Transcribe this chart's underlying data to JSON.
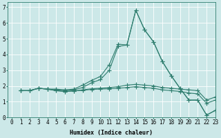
{
  "title": "",
  "xlabel": "Humidex (Indice chaleur)",
  "background_color": "#cce8e8",
  "grid_color": "#ffffff",
  "line_color": "#2e7d6e",
  "xlim": [
    -0.5,
    23
  ],
  "ylim": [
    0,
    7.3
  ],
  "xticks": [
    0,
    1,
    2,
    3,
    4,
    5,
    6,
    7,
    8,
    9,
    10,
    11,
    12,
    13,
    14,
    15,
    16,
    17,
    18,
    19,
    20,
    21,
    22,
    23
  ],
  "yticks": [
    0,
    1,
    2,
    3,
    4,
    5,
    6,
    7
  ],
  "lines": [
    [
      1.7,
      1.7,
      1.85,
      1.8,
      1.8,
      1.75,
      1.8,
      2.05,
      2.35,
      2.6,
      3.35,
      4.65,
      4.6,
      6.8,
      5.55,
      4.8,
      3.55,
      2.65,
      1.85,
      1.1,
      1.1,
      0.15,
      0.45
    ],
    [
      1.7,
      1.7,
      1.85,
      1.8,
      1.75,
      1.7,
      1.75,
      1.9,
      2.2,
      2.4,
      3.0,
      4.5,
      4.6,
      6.8,
      5.55,
      4.8,
      3.55,
      2.65,
      1.85,
      1.1,
      1.1,
      0.15,
      0.45
    ],
    [
      1.7,
      1.7,
      1.85,
      1.8,
      1.7,
      1.65,
      1.68,
      1.75,
      1.82,
      1.85,
      1.9,
      1.95,
      2.05,
      2.1,
      2.05,
      2.0,
      1.9,
      1.85,
      1.8,
      1.75,
      1.7,
      1.1,
      1.3
    ],
    [
      1.7,
      1.7,
      1.85,
      1.8,
      1.7,
      1.65,
      1.68,
      1.72,
      1.78,
      1.8,
      1.82,
      1.85,
      1.9,
      1.95,
      1.9,
      1.85,
      1.75,
      1.7,
      1.65,
      1.55,
      1.5,
      0.9,
      1.1
    ]
  ],
  "x_values": [
    1,
    2,
    3,
    4,
    5,
    6,
    7,
    8,
    9,
    10,
    11,
    12,
    13,
    14,
    15,
    16,
    17,
    18,
    19,
    20,
    21,
    22,
    23
  ],
  "marker": "+",
  "markersize": 4,
  "linewidth": 0.8,
  "xlabel_fontsize": 6,
  "tick_fontsize": 5.5
}
